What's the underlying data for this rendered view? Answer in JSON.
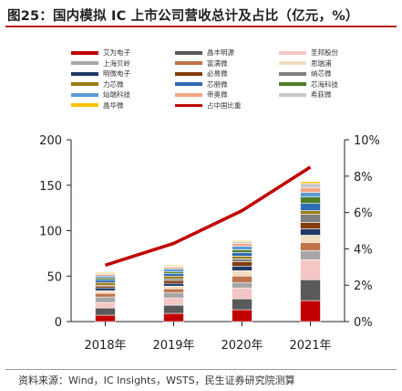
{
  "title": "图25：国内模拟 IC 上市公司营收总计及占比（亿元，%）",
  "source": "资料来源：Wind，IC Insights，WSTS，民生证券研究院测算",
  "chart_data": {
    "type": "bar",
    "stacked": true,
    "categories": [
      "2018年",
      "2019年",
      "2020年",
      "2021年"
    ],
    "y_left": {
      "lim": [
        0,
        200
      ],
      "ticks": [
        "0",
        "50",
        "100",
        "150",
        "200"
      ]
    },
    "y_right": {
      "lim": [
        0,
        10
      ],
      "ticks": [
        "0%",
        "2%",
        "4%",
        "6%",
        "8%",
        "10%"
      ]
    },
    "series": [
      {
        "name": "艾为电子",
        "color": "#c00000",
        "values": [
          7,
          9,
          13,
          23
        ]
      },
      {
        "name": "晶丰明源",
        "color": "#595959",
        "values": [
          8,
          9,
          12,
          23
        ]
      },
      {
        "name": "圣邦股份",
        "color": "#f4c6c6",
        "values": [
          6,
          8,
          12,
          22
        ]
      },
      {
        "name": "上海贝岭",
        "color": "#a6a6a6",
        "values": [
          6,
          6,
          6,
          10
        ]
      },
      {
        "name": "富满微",
        "color": "#c0724a",
        "values": [
          4,
          4,
          7,
          9
        ]
      },
      {
        "name": "思瑞浦",
        "color": "#f2dcc0",
        "values": [
          3,
          3,
          6,
          8
        ]
      },
      {
        "name": "明微电子",
        "color": "#1f3864",
        "values": [
          3,
          3,
          5,
          7
        ]
      },
      {
        "name": "必易微",
        "color": "#843c0c",
        "values": [
          2,
          3,
          5,
          7
        ]
      },
      {
        "name": "纳芯微",
        "color": "#7f7f7f",
        "values": [
          1,
          2,
          3,
          9
        ]
      },
      {
        "name": "力芯微",
        "color": "#9c7c12",
        "values": [
          3,
          3,
          3,
          4
        ]
      },
      {
        "name": "芯朋微",
        "color": "#2e6db4",
        "values": [
          3,
          3,
          4,
          8
        ]
      },
      {
        "name": "芯海科技",
        "color": "#4e7d2a",
        "values": [
          2,
          2,
          3,
          7
        ]
      },
      {
        "name": "灿瑞科技",
        "color": "#5b9bd5",
        "values": [
          2,
          3,
          4,
          5
        ]
      },
      {
        "name": "帝奥微",
        "color": "#f4a582",
        "values": [
          2,
          2,
          3,
          5
        ]
      },
      {
        "name": "希荻微",
        "color": "#c9c9c9",
        "values": [
          1,
          1,
          2,
          5
        ]
      },
      {
        "name": "晶华微",
        "color": "#ffc000",
        "values": [
          1,
          1,
          1,
          2
        ]
      }
    ],
    "line": {
      "name": "占中国比重",
      "color": "#c00000",
      "values": [
        3.1,
        4.3,
        6.1,
        8.5
      ],
      "axis": "right"
    }
  }
}
